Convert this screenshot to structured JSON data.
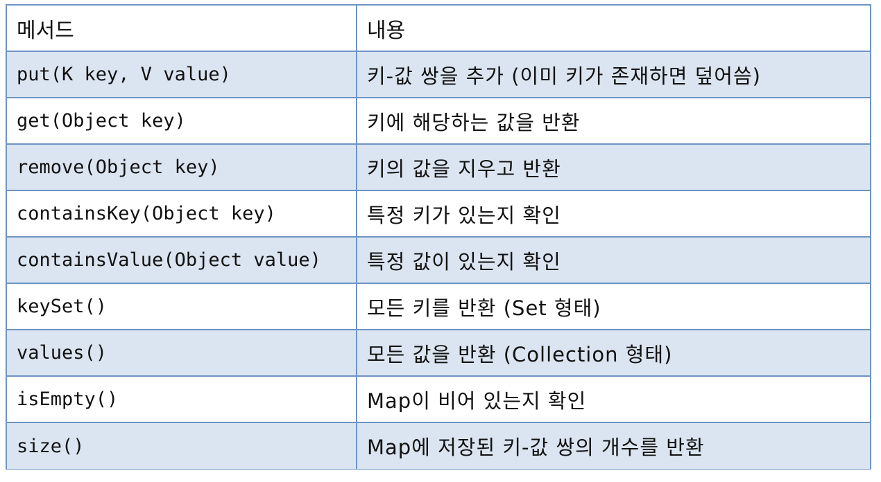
{
  "table": {
    "headers": [
      "메서드",
      "내용"
    ],
    "rows": [
      {
        "method": "put(K key, V value)",
        "description": "키-값 쌍을 추가 (이미 키가 존재하면 덮어씀)"
      },
      {
        "method": "get(Object key)",
        "description": "키에 해당하는 값을 반환"
      },
      {
        "method": "remove(Object key)",
        "description": "키의 값을 지우고 반환"
      },
      {
        "method": "containsKey(Object key)",
        "description": "특정 키가 있는지 확인"
      },
      {
        "method": "containsValue(Object value)",
        "description": "특정 값이 있는지 확인"
      },
      {
        "method": "keySet()",
        "description": "모든 키를 반환 (Set 형태)"
      },
      {
        "method": "values()",
        "description": "모든 값을 반환 (Collection 형태)"
      },
      {
        "method": "isEmpty()",
        "description": "Map이 비어 있는지 확인"
      },
      {
        "method": "size()",
        "description": "Map에 저장된 키-값 쌍의 개수를 반환"
      }
    ]
  },
  "colors": {
    "border": "#6e94c4",
    "row_alt": "#dbe5f1",
    "row_plain": "#ffffff",
    "text": "#111111"
  }
}
